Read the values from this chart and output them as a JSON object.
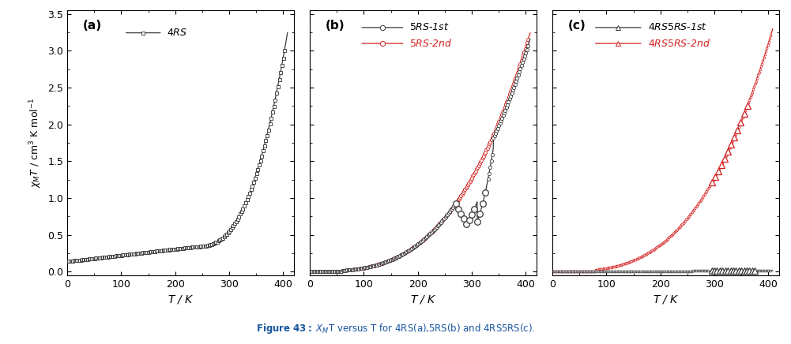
{
  "ylabel": "$\\chi_M$$T$ / cm$^3$ K mol$^{-1}$",
  "xlabel": "$T$ / K",
  "xlim": [
    0,
    420
  ],
  "ylim": [
    -0.05,
    3.55
  ],
  "yticks": [
    0.0,
    0.5,
    1.0,
    1.5,
    2.0,
    2.5,
    3.0,
    3.5
  ],
  "xticks": [
    0,
    100,
    200,
    300,
    400
  ],
  "panels": [
    "(a)",
    "(b)",
    "(c)"
  ],
  "black_color": "#3a3a3a",
  "red_color": "#d42020",
  "marker_size_a": 3.5,
  "marker_size_b": 5.5,
  "marker_size_c": 6.0,
  "line_width": 0.9,
  "caption": "Figure 43: $X_M$T versus T for 4RS(a),5RS(b) and 4RS5RS(c)."
}
